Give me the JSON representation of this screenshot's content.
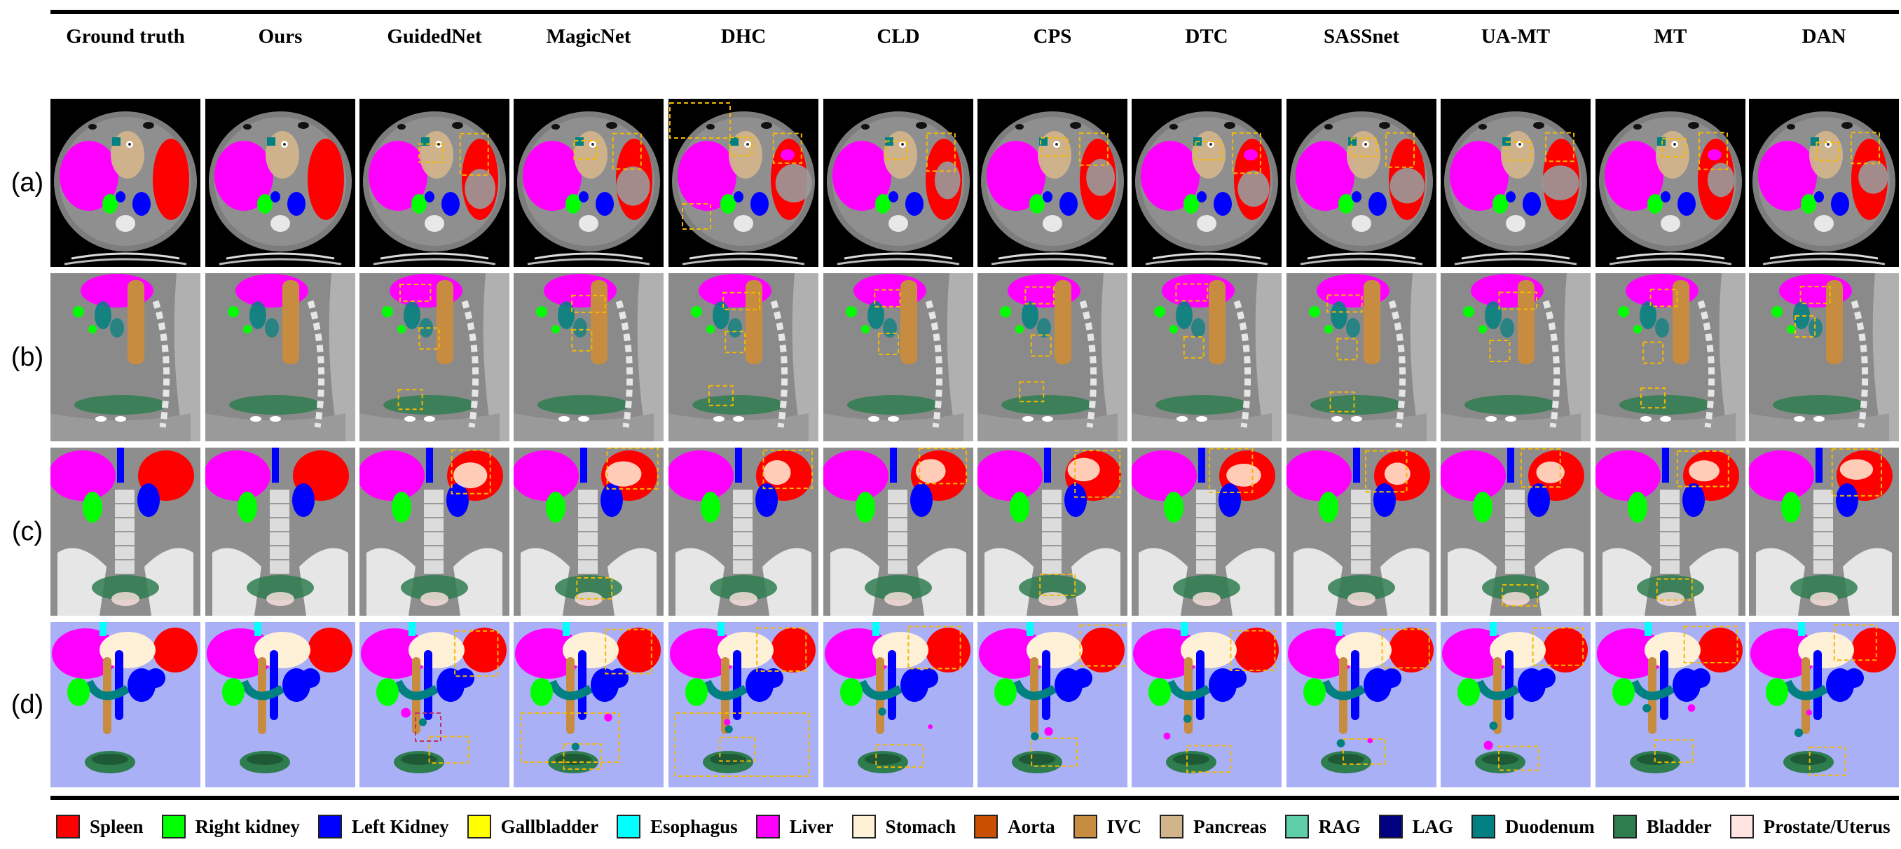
{
  "methods": [
    "Ground truth",
    "Ours",
    "GuidedNet",
    "MagicNet",
    "DHC",
    "CLD",
    "CPS",
    "DTC",
    "SASSnet",
    "UA-MT",
    "MT",
    "DAN"
  ],
  "rows": [
    "(a)",
    "(b)",
    "(c)",
    "(d)"
  ],
  "legend": [
    {
      "label": "Spleen",
      "color": "#ff0000"
    },
    {
      "label": "Right kidney",
      "color": "#00ff00"
    },
    {
      "label": "Left Kidney",
      "color": "#0000ff"
    },
    {
      "label": "Gallbladder",
      "color": "#ffff00"
    },
    {
      "label": "Esophagus",
      "color": "#00ffff"
    },
    {
      "label": "Liver",
      "color": "#ff00ff"
    },
    {
      "label": "Stomach",
      "color": "#fff0d8"
    },
    {
      "label": "Aorta",
      "color": "#c85000"
    },
    {
      "label": "IVC",
      "color": "#c88c40"
    },
    {
      "label": "Pancreas",
      "color": "#d2b48c"
    },
    {
      "label": "RAG",
      "color": "#5fcfaa"
    },
    {
      "label": "LAG",
      "color": "#000080"
    },
    {
      "label": "Duodenum",
      "color": "#008080"
    },
    {
      "label": "Bladder",
      "color": "#2e7d4f"
    },
    {
      "label": "Prostate/Uterus",
      "color": "#ffe4e1"
    }
  ]
}
